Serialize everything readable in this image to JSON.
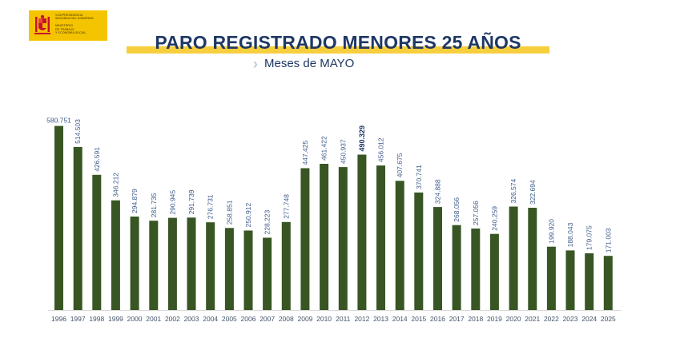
{
  "logo": {
    "lines": [
      "VICEPRESIDENCIA",
      "SEGUNDA DEL GOBIERNO",
      "MINISTERIO",
      "DE TRABAJO",
      "Y ECONOMÍA SOCIAL"
    ]
  },
  "colors": {
    "bar": "#375623",
    "title": "#1f3864",
    "title_bar": "#f7cf3e",
    "logo_bg": "#f5c400"
  },
  "chart_data": {
    "type": "bar",
    "title": "PARO REGISTRADO MENORES 25 AÑOS",
    "subtitle": "Meses de MAYO",
    "categories": [
      "1996",
      "1997",
      "1998",
      "1999",
      "2000",
      "2001",
      "2002",
      "2003",
      "2004",
      "2005",
      "2006",
      "2007",
      "2008",
      "2009",
      "2010",
      "2011",
      "2012",
      "2013",
      "2014",
      "2015",
      "2016",
      "2017",
      "2018",
      "2019",
      "2020",
      "2021",
      "2022",
      "2023",
      "2024",
      "2025"
    ],
    "values": [
      580751,
      514503,
      426591,
      346212,
      294879,
      281735,
      290945,
      291739,
      276731,
      258851,
      250912,
      228223,
      277748,
      447425,
      461422,
      450937,
      490329,
      456012,
      407675,
      370741,
      324888,
      268056,
      257056,
      240259,
      326574,
      322694,
      199920,
      188043,
      179075,
      171003
    ],
    "value_labels": [
      "580.751",
      "514.503",
      "426.591",
      "346.212",
      "294.879",
      "281.735",
      "290.945",
      "291.739",
      "276.731",
      "258.851",
      "250.912",
      "228.223",
      "277.748",
      "447.425",
      "461.422",
      "450.937",
      "490.329",
      "456.012",
      "407.675",
      "370.741",
      "324.888",
      "268.056",
      "257.056",
      "240.259",
      "326.574",
      "322.694",
      "199.920",
      "188.043",
      "179.075",
      "171.003"
    ],
    "highlight": "2012",
    "ylim": [
      0,
      600000
    ],
    "grid": false,
    "legend": "none"
  }
}
